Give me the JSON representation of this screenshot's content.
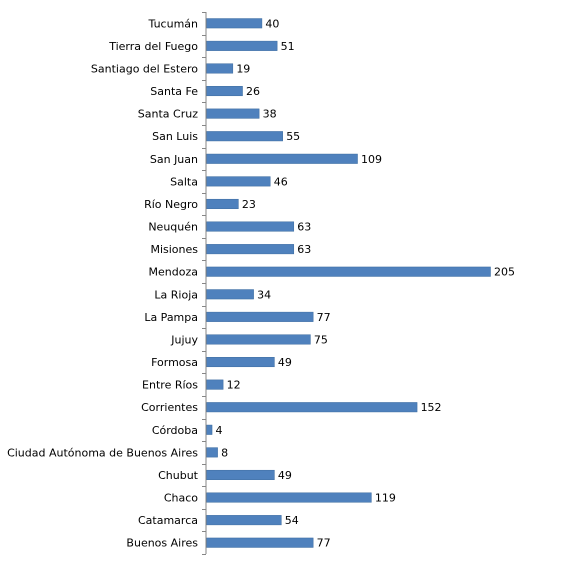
{
  "chart_data": {
    "type": "bar",
    "orientation": "horizontal",
    "categories": [
      "Tucumán",
      "Tierra del Fuego",
      "Santiago del Estero",
      "Santa Fe",
      "Santa Cruz",
      "San Luis",
      "San Juan",
      "Salta",
      "Río Negro",
      "Neuquén",
      "Misiones",
      "Mendoza",
      "La Rioja",
      "La Pampa",
      "Jujuy",
      "Formosa",
      "Entre Ríos",
      "Corrientes",
      "Córdoba",
      "Ciudad Autónoma de Buenos Aires",
      "Chubut",
      "Chaco",
      "Catamarca",
      "Buenos Aires"
    ],
    "values": [
      40,
      51,
      19,
      26,
      38,
      55,
      109,
      46,
      23,
      63,
      63,
      205,
      34,
      77,
      75,
      49,
      12,
      152,
      4,
      8,
      49,
      119,
      54,
      77
    ],
    "xlim": [
      0,
      205
    ],
    "data_labels": true,
    "legend": "none",
    "grid": false,
    "colors": {
      "bar": "#4F81BD",
      "bar_edge": "#3A6A9E",
      "axis": "#868686"
    }
  }
}
